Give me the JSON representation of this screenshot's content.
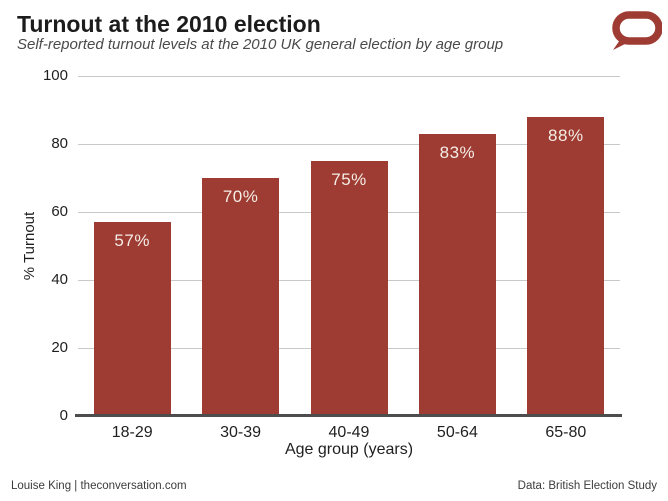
{
  "header": {
    "title": "Turnout at the 2010 election",
    "subtitle": "Self-reported turnout levels at the 2010 UK general election by age group"
  },
  "logo": {
    "name": "the-conversation-speech-bubble",
    "color": "#a6четыре0f33"
  },
  "chart_data": {
    "type": "bar",
    "categories": [
      "18-29",
      "30-39",
      "40-49",
      "50-64",
      "65-80"
    ],
    "values": [
      57,
      70,
      75,
      83,
      88
    ],
    "bar_labels": [
      "57%",
      "70%",
      "75%",
      "83%",
      "88%"
    ],
    "title": "Turnout at the 2010 election",
    "subtitle": "Self-reported turnout levels at the 2010 UK general election by age group",
    "xlabel": "Age group (years)",
    "ylabel": "% Turnout",
    "ylim": [
      0,
      100
    ],
    "yticks": [
      0,
      20,
      40,
      60,
      80,
      100
    ],
    "grid": true,
    "legend_position": "none",
    "bar_color": "#9e3b32",
    "bar_label_color": "#f3eee6",
    "gridline_color": "#c9c9c9",
    "axis_line_color": "#4d4d4d"
  },
  "footer": {
    "left": "Louise King | theconversation.com",
    "right": "Data: British Election Study"
  }
}
